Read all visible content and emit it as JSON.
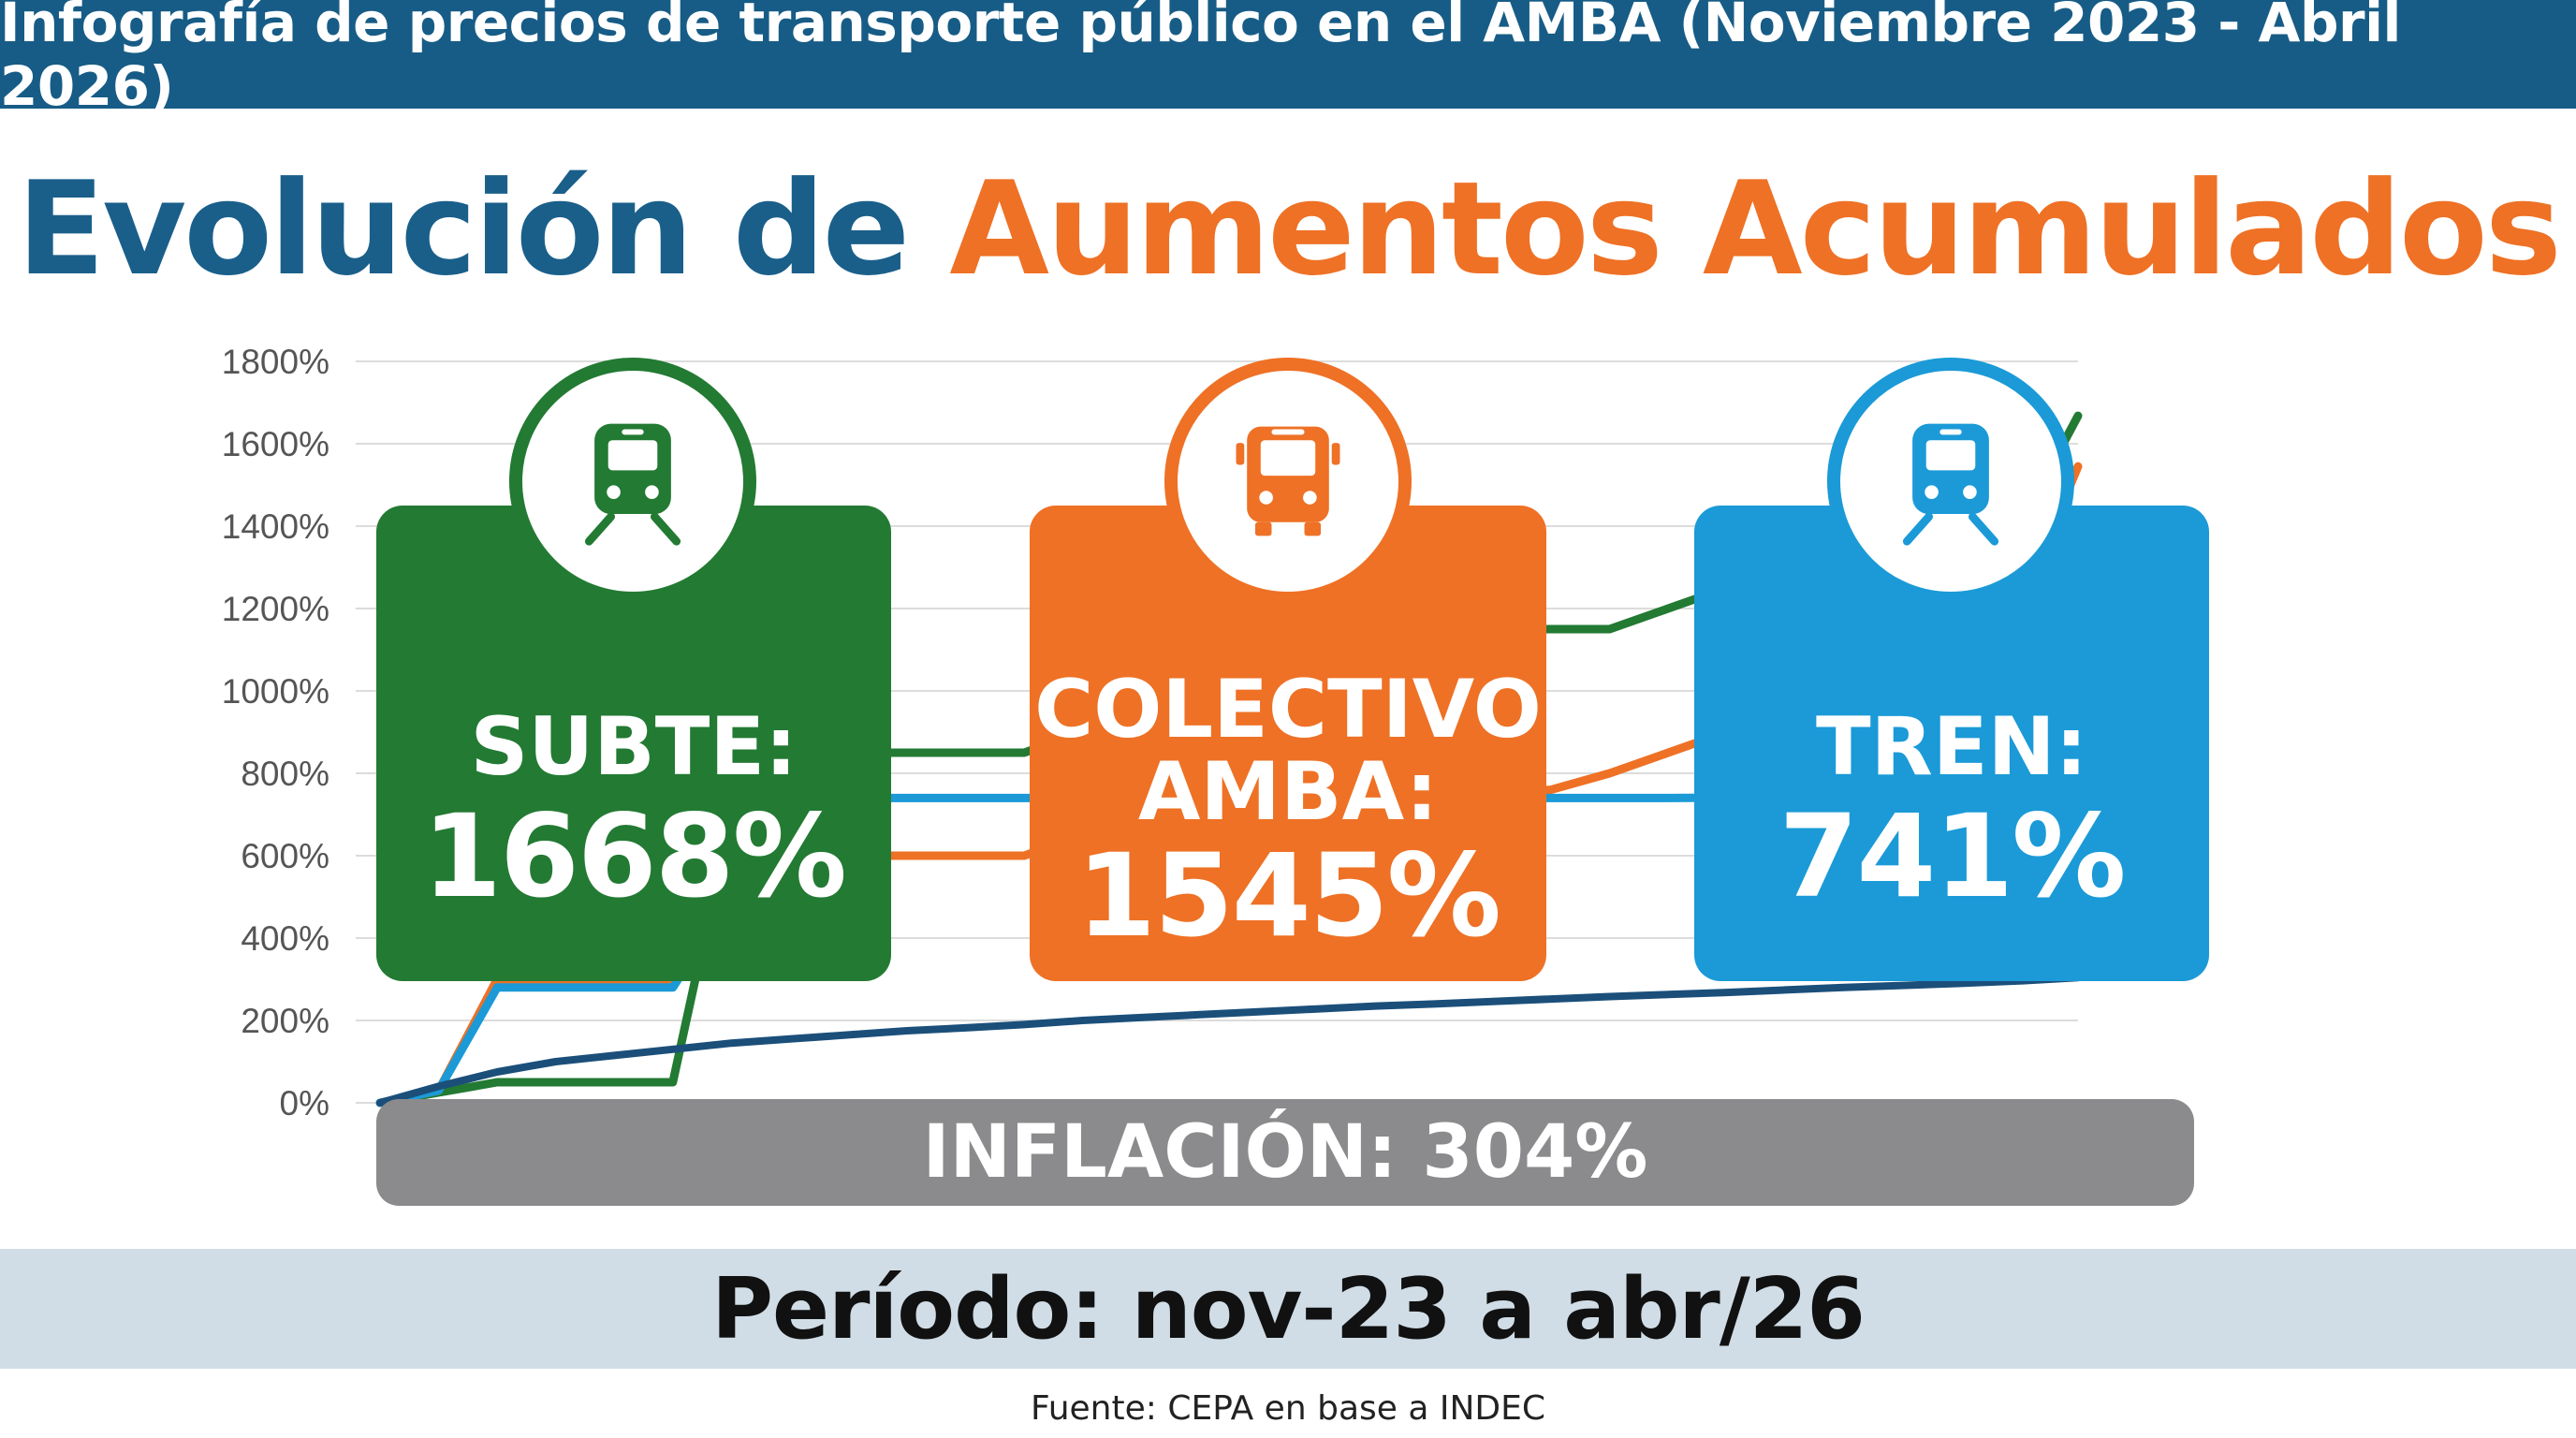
{
  "header": {
    "banner": "Infografía de precios de transporte público en el AMBA (Noviembre 2023 - Abril 2026)"
  },
  "headline": {
    "part1": "Evolución de",
    "part2": "Aumentos Acumulados"
  },
  "colors": {
    "subte": "#237a33",
    "colectivo": "#ee7125",
    "tren": "#1b9ad7",
    "inflacion": "#1b4f7a",
    "banner": "#175c86"
  },
  "cards": {
    "subte": {
      "icon": "train-icon",
      "label": "SUBTE:",
      "value": "1668%"
    },
    "colectivo": {
      "icon": "bus-icon",
      "label_line1": "COLECTIVO",
      "label_line2": "AMBA:",
      "value": "1545%"
    },
    "tren": {
      "icon": "train-icon",
      "label": "TREN:",
      "value": "741%"
    }
  },
  "inflation_label": "INFLACIÓN: 304%",
  "period": "Período: nov-23 a abr/26",
  "source": "Fuente: CEPA en base a INDEC",
  "chart_data": {
    "type": "line",
    "title": "",
    "xlabel": "",
    "ylabel": "",
    "ylim": [
      0,
      1800
    ],
    "yticks": [
      "0%",
      "200%",
      "400%",
      "600%",
      "800%",
      "1000%",
      "1200%",
      "1400%",
      "1600%",
      "1800%"
    ],
    "grid": true,
    "x": [
      0,
      1,
      2,
      3,
      4,
      5,
      6,
      7,
      8,
      9,
      10,
      11,
      12,
      13,
      14,
      15,
      16,
      17,
      18,
      19,
      20,
      21,
      22,
      23,
      24,
      25,
      26,
      27,
      28,
      29
    ],
    "series": [
      {
        "key": "subte",
        "values": [
          0,
          25,
          50,
          50,
          50,
          50,
          700,
          850,
          850,
          850,
          850,
          850,
          900,
          950,
          1000,
          1050,
          1080,
          1100,
          1120,
          1150,
          1150,
          1150,
          1200,
          1250,
          1300,
          1300,
          1300,
          1350,
          1400,
          1668
        ]
      },
      {
        "key": "colectivo",
        "values": [
          0,
          30,
          300,
          300,
          300,
          300,
          600,
          600,
          600,
          600,
          600,
          600,
          650,
          700,
          700,
          720,
          720,
          740,
          740,
          750,
          760,
          800,
          850,
          900,
          950,
          1000,
          1050,
          1100,
          1200,
          1545
        ]
      },
      {
        "key": "tren",
        "values": [
          0,
          30,
          280,
          280,
          280,
          280,
          500,
          740,
          740,
          740,
          740,
          740,
          740,
          740,
          740,
          740,
          740,
          740,
          740,
          740,
          740,
          740,
          740,
          741,
          741,
          741,
          741,
          741,
          741,
          741
        ]
      },
      {
        "key": "inflacion",
        "values": [
          0,
          40,
          75,
          100,
          115,
          130,
          145,
          155,
          165,
          175,
          182,
          190,
          200,
          207,
          214,
          221,
          228,
          235,
          240,
          246,
          252,
          258,
          263,
          268,
          274,
          280,
          285,
          290,
          296,
          304
        ]
      }
    ]
  }
}
